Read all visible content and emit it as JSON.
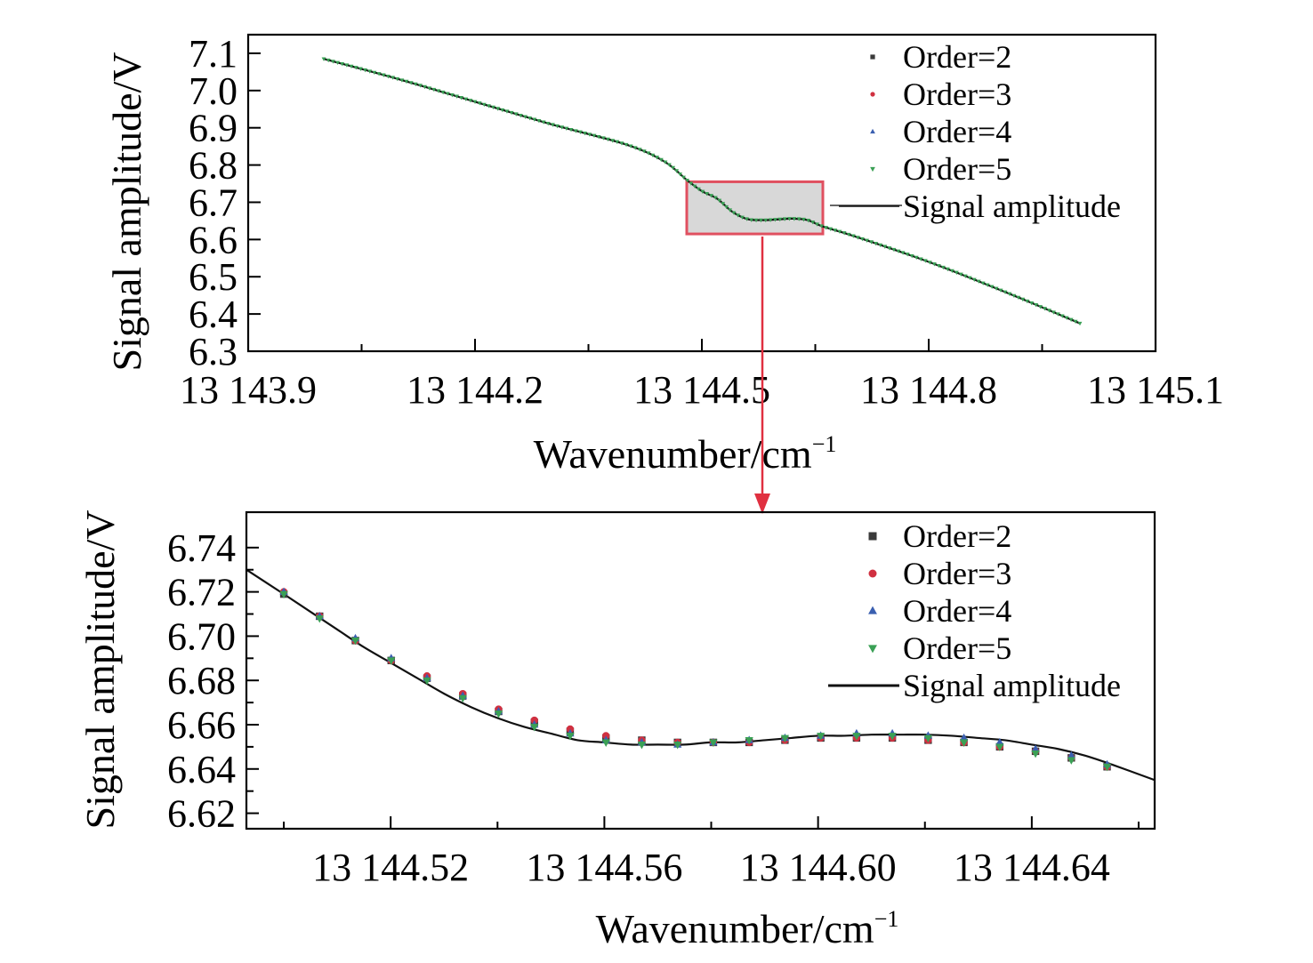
{
  "chart_data": [
    {
      "type": "scatter",
      "panel": "overview",
      "xlabel": "Wavenumber/cm",
      "xlabel_superscript": "−1",
      "ylabel": "Signal amplitude/V",
      "xlim": [
        13143.9,
        13145.1
      ],
      "ylim": [
        6.3,
        7.15
      ],
      "xticks": [
        13143.9,
        13144.2,
        13144.5,
        13144.8,
        13145.1
      ],
      "xtick_labels": [
        "13 143.9",
        "13 144.2",
        "13 144.5",
        "13 144.8",
        "13 145.1"
      ],
      "yticks": [
        6.3,
        6.4,
        6.5,
        6.6,
        6.7,
        6.8,
        6.9,
        7.0,
        7.1
      ],
      "ytick_labels": [
        "6.3",
        "6.4",
        "6.5",
        "6.6",
        "6.7",
        "6.8",
        "6.9",
        "7.0",
        "7.1"
      ],
      "legend_position": "top-right",
      "series": [
        {
          "name": "Order=2",
          "color": "#3a3a3a",
          "marker": "square"
        },
        {
          "name": "Order=3",
          "color": "#d03040",
          "marker": "circle"
        },
        {
          "name": "Order=4",
          "color": "#3a5fb0",
          "marker": "triangle-up"
        },
        {
          "name": "Order=5",
          "color": "#3aa055",
          "marker": "triangle-down"
        },
        {
          "name": "Signal amplitude",
          "color": "#111111",
          "marker": "line"
        }
      ],
      "curve": {
        "x": [
          13144.0,
          13144.1,
          13144.2,
          13144.3,
          13144.4,
          13144.45,
          13144.48,
          13144.5,
          13144.52,
          13144.54,
          13144.56,
          13144.58,
          13144.6,
          13144.62,
          13144.64,
          13144.66,
          13144.7,
          13144.8,
          13144.9,
          13145.0
        ],
        "y": [
          7.085,
          7.03,
          6.97,
          6.91,
          6.855,
          6.81,
          6.76,
          6.73,
          6.71,
          6.675,
          6.655,
          6.652,
          6.654,
          6.656,
          6.652,
          6.635,
          6.61,
          6.54,
          6.46,
          6.375
        ]
      },
      "highlight_box": {
        "x": [
          13144.48,
          13144.66
        ],
        "y": [
          6.615,
          6.755
        ],
        "fill": "#d8d8d8",
        "stroke": "#e05060"
      }
    },
    {
      "type": "scatter",
      "panel": "zoom",
      "xlabel": "Wavenumber/cm",
      "xlabel_superscript": "−1",
      "ylabel": "Signal amplitude/V",
      "xlim": [
        13144.493,
        13144.663
      ],
      "ylim": [
        6.613,
        6.756
      ],
      "xticks": [
        13144.52,
        13144.56,
        13144.6,
        13144.64
      ],
      "xtick_labels": [
        "13 144.52",
        "13 144.56",
        "13 144.60",
        "13 144.64"
      ],
      "yticks": [
        6.62,
        6.64,
        6.66,
        6.68,
        6.7,
        6.72,
        6.74
      ],
      "ytick_labels": [
        "6.62",
        "6.64",
        "6.66",
        "6.68",
        "6.70",
        "6.72",
        "6.74"
      ],
      "legend_position": "top-right",
      "series": [
        {
          "name": "Order=2",
          "color": "#3a3a3a",
          "marker": "square",
          "x": [
            13144.5,
            13144.5067,
            13144.5134,
            13144.5201,
            13144.5268,
            13144.5335,
            13144.5402,
            13144.5469,
            13144.5536,
            13144.5603,
            13144.567,
            13144.5737,
            13144.5804,
            13144.5871,
            13144.5938,
            13144.6005,
            13144.6072,
            13144.6139,
            13144.6206,
            13144.6273,
            13144.634,
            13144.6407,
            13144.6474,
            13144.6541
          ],
          "y": [
            6.719,
            6.709,
            6.698,
            6.689,
            6.681,
            6.673,
            6.666,
            6.661,
            6.657,
            6.654,
            6.653,
            6.652,
            6.652,
            6.652,
            6.653,
            6.654,
            6.654,
            6.654,
            6.653,
            6.652,
            6.65,
            6.648,
            6.645,
            6.641
          ]
        },
        {
          "name": "Order=3",
          "color": "#d03040",
          "marker": "circle",
          "x": [
            13144.5,
            13144.5067,
            13144.5134,
            13144.5201,
            13144.5268,
            13144.5335,
            13144.5402,
            13144.5469,
            13144.5536,
            13144.5603,
            13144.567,
            13144.5737,
            13144.5804,
            13144.5871,
            13144.5938,
            13144.6005,
            13144.6072,
            13144.6139,
            13144.6206,
            13144.6273,
            13144.634,
            13144.6407,
            13144.6474,
            13144.6541
          ],
          "y": [
            6.72,
            6.709,
            6.698,
            6.689,
            6.682,
            6.674,
            6.667,
            6.662,
            6.658,
            6.655,
            6.653,
            6.652,
            6.652,
            6.652,
            6.653,
            6.654,
            6.654,
            6.654,
            6.653,
            6.652,
            6.65,
            6.648,
            6.645,
            6.641
          ]
        },
        {
          "name": "Order=4",
          "color": "#3a5fb0",
          "marker": "triangle-up",
          "x": [
            13144.5,
            13144.5067,
            13144.5134,
            13144.5201,
            13144.5268,
            13144.5335,
            13144.5402,
            13144.5469,
            13144.5536,
            13144.5603,
            13144.567,
            13144.5737,
            13144.5804,
            13144.5871,
            13144.5938,
            13144.6005,
            13144.6072,
            13144.6139,
            13144.6206,
            13144.6273,
            13144.634,
            13144.6407,
            13144.6474,
            13144.6541
          ],
          "y": [
            6.72,
            6.709,
            6.699,
            6.69,
            6.681,
            6.673,
            6.666,
            6.66,
            6.656,
            6.653,
            6.652,
            6.651,
            6.652,
            6.653,
            6.654,
            6.655,
            6.656,
            6.656,
            6.655,
            6.654,
            6.652,
            6.649,
            6.646,
            6.642
          ]
        },
        {
          "name": "Order=5",
          "color": "#3aa055",
          "marker": "triangle-down",
          "x": [
            13144.5,
            13144.5067,
            13144.5134,
            13144.5201,
            13144.5268,
            13144.5335,
            13144.5402,
            13144.5469,
            13144.5536,
            13144.5603,
            13144.567,
            13144.5737,
            13144.5804,
            13144.5871,
            13144.5938,
            13144.6005,
            13144.6072,
            13144.6139,
            13144.6206,
            13144.6273,
            13144.634,
            13144.6407,
            13144.6474,
            13144.6541
          ],
          "y": [
            6.719,
            6.708,
            6.698,
            6.689,
            6.68,
            6.672,
            6.665,
            6.659,
            6.655,
            6.652,
            6.651,
            6.651,
            6.652,
            6.653,
            6.654,
            6.655,
            6.655,
            6.655,
            6.654,
            6.652,
            6.65,
            6.647,
            6.644,
            6.641
          ]
        },
        {
          "name": "Signal amplitude",
          "color": "#111111",
          "marker": "line",
          "x": [
            13144.493,
            13144.5,
            13144.505,
            13144.51,
            13144.515,
            13144.52,
            13144.525,
            13144.53,
            13144.535,
            13144.54,
            13144.545,
            13144.55,
            13144.555,
            13144.56,
            13144.565,
            13144.57,
            13144.575,
            13144.58,
            13144.585,
            13144.59,
            13144.595,
            13144.6,
            13144.605,
            13144.61,
            13144.615,
            13144.62,
            13144.625,
            13144.63,
            13144.635,
            13144.64,
            13144.645,
            13144.65,
            13144.655,
            13144.663
          ],
          "y": [
            6.73,
            6.719,
            6.711,
            6.703,
            6.695,
            6.688,
            6.681,
            6.674,
            6.668,
            6.663,
            6.659,
            6.656,
            6.653,
            6.652,
            6.651,
            6.651,
            6.651,
            6.652,
            6.652,
            6.653,
            6.654,
            6.655,
            6.655,
            6.6555,
            6.6555,
            6.6555,
            6.655,
            6.654,
            6.653,
            6.651,
            6.649,
            6.646,
            6.642,
            6.635
          ]
        }
      ]
    }
  ],
  "arrow_color": "#e03040"
}
